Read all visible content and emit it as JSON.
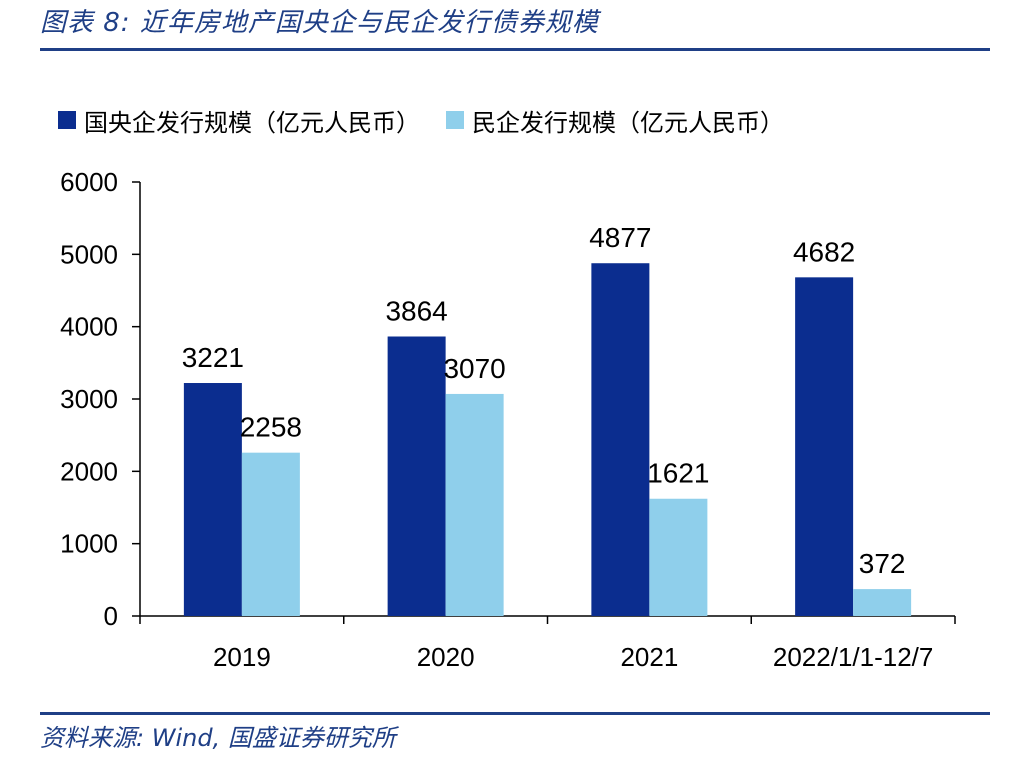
{
  "figure": {
    "title": "图表 8:  近年房地产国央企与民企发行债券规模",
    "source": "资料来源:  Wind,  国盛证券研究所"
  },
  "colors": {
    "accent": "#1f3f86",
    "series_dark": "#0b2d8f",
    "series_light": "#8fcfeb"
  },
  "chart_data": {
    "type": "bar",
    "title": "",
    "xlabel": "",
    "ylabel": "",
    "categories": [
      "2019",
      "2020",
      "2021",
      "2022/1/1-12/7"
    ],
    "series": [
      {
        "name": "国央企发行规模（亿元人民币）",
        "values": [
          3221,
          3864,
          4877,
          4682
        ],
        "color": "#0b2d8f"
      },
      {
        "name": "民企发行规模（亿元人民币）",
        "values": [
          2258,
          3070,
          1621,
          372
        ],
        "color": "#8fcfeb"
      }
    ],
    "ylim": [
      0,
      6000
    ],
    "yticks": [
      0,
      1000,
      2000,
      3000,
      4000,
      5000,
      6000
    ],
    "grid": false,
    "legend_position": "top-left"
  }
}
